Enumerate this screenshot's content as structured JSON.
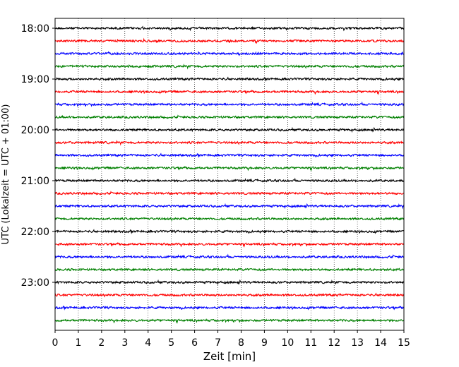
{
  "chart_data": {
    "type": "line",
    "title": "",
    "xlabel": "Zeit  [min]",
    "ylabel": "UTC (Lokalzeit = UTC + 01:00)",
    "xlim": [
      0,
      15
    ],
    "x_ticks": [
      0,
      1,
      2,
      3,
      4,
      5,
      6,
      7,
      8,
      9,
      10,
      11,
      12,
      13,
      14,
      15
    ],
    "y_tick_labels": [
      "18:00",
      "19:00",
      "20:00",
      "21:00",
      "22:00",
      "23:00"
    ],
    "grid": "vertical-dotted",
    "colors": [
      "#000000",
      "#ff0000",
      "#0000ff",
      "#008000"
    ],
    "series": [
      {
        "start": "18:00"
      },
      {
        "start": "18:15"
      },
      {
        "start": "18:30"
      },
      {
        "start": "18:45"
      },
      {
        "start": "19:00"
      },
      {
        "start": "19:15"
      },
      {
        "start": "19:30"
      },
      {
        "start": "19:45"
      },
      {
        "start": "20:00"
      },
      {
        "start": "20:15"
      },
      {
        "start": "20:30"
      },
      {
        "start": "20:45"
      },
      {
        "start": "21:00"
      },
      {
        "start": "21:15"
      },
      {
        "start": "21:30"
      },
      {
        "start": "21:45"
      },
      {
        "start": "22:00"
      },
      {
        "start": "22:15"
      },
      {
        "start": "22:30"
      },
      {
        "start": "22:45"
      },
      {
        "start": "23:00"
      },
      {
        "start": "23:15"
      },
      {
        "start": "23:30"
      },
      {
        "start": "23:45"
      }
    ]
  }
}
